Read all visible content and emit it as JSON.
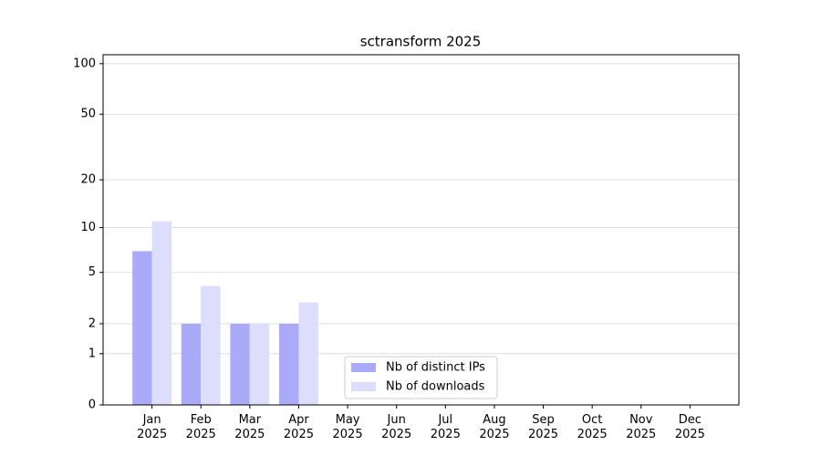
{
  "chart_data": {
    "type": "bar",
    "title": "sctransform 2025",
    "categories": [
      "Jan\n2025",
      "Feb\n2025",
      "Mar\n2025",
      "Apr\n2025",
      "May\n2025",
      "Jun\n2025",
      "Jul\n2025",
      "Aug\n2025",
      "Sep\n2025",
      "Oct\n2025",
      "Nov\n2025",
      "Dec\n2025"
    ],
    "series": [
      {
        "name": "Nb of distinct IPs",
        "color": "#aaaaf8",
        "values": [
          7,
          2,
          2,
          2,
          0,
          0,
          0,
          0,
          0,
          0,
          0,
          0
        ]
      },
      {
        "name": "Nb of downloads",
        "color": "#ddddfd",
        "values": [
          11,
          4,
          2,
          3,
          0,
          0,
          0,
          0,
          0,
          0,
          0,
          0
        ]
      }
    ],
    "yscale": "log1p",
    "ylim": [
      0,
      113
    ],
    "yticks": [
      0,
      1,
      2,
      5,
      10,
      20,
      50,
      100
    ],
    "grid": true,
    "legend": "lower center"
  }
}
